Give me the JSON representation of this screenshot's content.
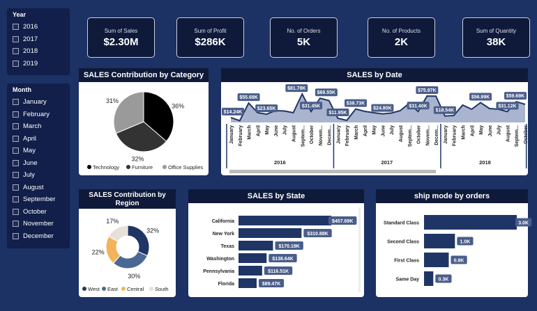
{
  "slicers": {
    "year": {
      "title": "Year",
      "options": [
        "2016",
        "2017",
        "2018",
        "2019"
      ]
    },
    "month": {
      "title": "Month",
      "options": [
        "January",
        "February",
        "March",
        "April",
        "May",
        "June",
        "July",
        "August",
        "September",
        "October",
        "November",
        "December"
      ]
    }
  },
  "kpis": [
    {
      "label": "Sum of Sales",
      "value": "$2.30M"
    },
    {
      "label": "Sum of Profit",
      "value": "$286K"
    },
    {
      "label": "No. of Orders",
      "value": "5K"
    },
    {
      "label": "No. of Products",
      "value": "2K"
    },
    {
      "label": "Sum of Quantity",
      "value": "38K"
    }
  ],
  "colors": {
    "navy": "#1f3566",
    "label_bg": "#4a5d8a",
    "area": "#a9b4cf"
  },
  "chart_data": [
    {
      "type": "pie",
      "title": "SALES Contribution by Category",
      "categories": [
        "Technology",
        "Furniture",
        "Office Supplies"
      ],
      "values": [
        36,
        32,
        31
      ],
      "labels": [
        "36%",
        "32%",
        "31%"
      ],
      "colors": [
        "#000000",
        "#333333",
        "#9a9a9a"
      ],
      "legend": "bottom"
    },
    {
      "type": "area",
      "title": "SALES by Date",
      "years": [
        "2016",
        "2017",
        "2018"
      ],
      "months": [
        "January",
        "February",
        "March",
        "April",
        "May",
        "June",
        "July",
        "August",
        "Septem...",
        "October",
        "Novem...",
        "Decem...",
        "January",
        "February",
        "March",
        "April",
        "May",
        "June",
        "July",
        "August",
        "Septem...",
        "October",
        "Novem...",
        "Decem...",
        "January",
        "February",
        "March",
        "April",
        "May",
        "June",
        "July",
        "August",
        "Septem...",
        "October"
      ],
      "values": [
        14.24,
        5,
        55.69,
        28,
        23.65,
        34,
        33,
        28,
        81.78,
        31.45,
        69.55,
        63,
        11.95,
        6,
        38.73,
        32,
        28,
        24.8,
        27,
        34,
        55,
        31.4,
        75.97,
        75.5,
        18.54,
        20,
        50,
        38,
        56.99,
        40,
        38,
        31.12,
        59.69,
        52
      ],
      "data_labels": {
        "0": "$14.24K",
        "2": "$55.69K",
        "4": "$23.65K",
        "8": "$81.78K",
        "9": "$31.45K",
        "10": "$69.55K",
        "12": "$11.95K",
        "14": "$38.73K",
        "17": "$24.80K",
        "21": "$31.40K",
        "22": "$75.97K",
        "24": "$18.54K",
        "28": "$56.99K",
        "31": "$31.12K",
        "32": "$59.69K"
      }
    },
    {
      "type": "donut",
      "title": "SALES Contribution by Region",
      "categories": [
        "West",
        "East",
        "Central",
        "South"
      ],
      "values": [
        32,
        30,
        22,
        17
      ],
      "labels": [
        "32%",
        "30%",
        "22%",
        "17%"
      ],
      "colors": [
        "#1f3566",
        "#4a6894",
        "#f4b35b",
        "#e6e1d8"
      ],
      "legend": "bottom"
    },
    {
      "type": "bar",
      "title": "SALES by State",
      "categories": [
        "California",
        "New York",
        "Texas",
        "Washington",
        "Pennsylvania",
        "Florida"
      ],
      "values": [
        457.69,
        310.88,
        170.19,
        138.64,
        116.51,
        89.47
      ],
      "labels": [
        "$457.69K",
        "$310.88K",
        "$170.19K",
        "$138.64K",
        "$116.51K",
        "$89.47K"
      ]
    },
    {
      "type": "bar",
      "title": "ship mode by orders",
      "categories": [
        "Standard Class",
        "Second Class",
        "First Class",
        "Same Day"
      ],
      "values": [
        3.0,
        1.0,
        0.8,
        0.3
      ],
      "labels": [
        "3.0K",
        "1.0K",
        "0.8K",
        "0.3K"
      ]
    }
  ]
}
